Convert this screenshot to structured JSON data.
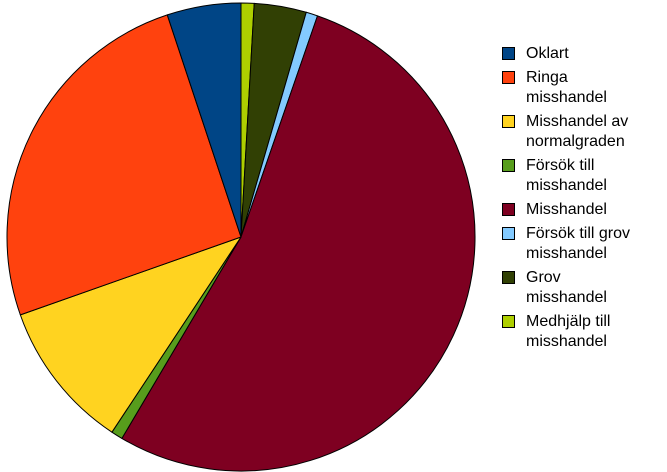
{
  "chart_data": {
    "type": "pie",
    "title": "",
    "legend_position": "right",
    "start_angle_deg": 0,
    "direction": "clockwise",
    "slices": [
      {
        "label": "Medhjälp till misshandel",
        "value": 0.9,
        "color": "#AECF00"
      },
      {
        "label": "Grov misshandel",
        "value": 3.6,
        "color": "#314004"
      },
      {
        "label": "Försök till grov misshandel",
        "value": 0.8,
        "color": "#83CAFF"
      },
      {
        "label": "Misshandel",
        "value": 53.2,
        "color": "#7E0021"
      },
      {
        "label": "Försök till misshandel",
        "value": 0.8,
        "color": "#579D1C"
      },
      {
        "label": "Misshandel av normalgraden",
        "value": 10.3,
        "color": "#FFD320"
      },
      {
        "label": "Ringa misshandel",
        "value": 25.3,
        "color": "#FF420E"
      },
      {
        "label": "Oklart",
        "value": 5.1,
        "color": "#004586"
      }
    ],
    "legend": [
      {
        "lines": [
          "Oklart"
        ],
        "color": "#004586"
      },
      {
        "lines": [
          "Ringa",
          "misshandel"
        ],
        "color": "#FF420E"
      },
      {
        "lines": [
          "Misshandel av",
          "normalgraden"
        ],
        "color": "#FFD320"
      },
      {
        "lines": [
          "Försök till",
          "misshandel"
        ],
        "color": "#579D1C"
      },
      {
        "lines": [
          "Misshandel"
        ],
        "color": "#7E0021"
      },
      {
        "lines": [
          "Försök till grov",
          "misshandel"
        ],
        "color": "#83CAFF"
      },
      {
        "lines": [
          "Grov",
          "misshandel"
        ],
        "color": "#314004"
      },
      {
        "lines": [
          "Medhjälp till",
          "misshandel"
        ],
        "color": "#AECF00"
      }
    ]
  }
}
